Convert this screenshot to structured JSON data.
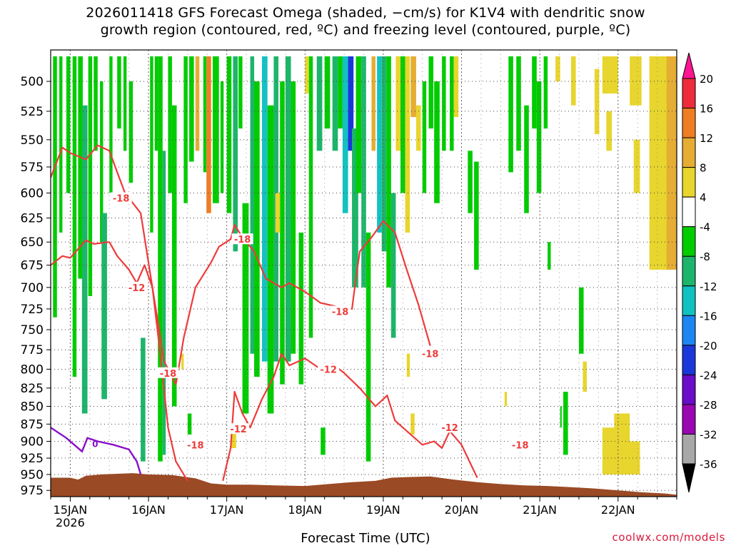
{
  "title_line1": "2026011418 GFS Forecast Omega (shaded, −cm/s) for K1V4 with dendritic snow",
  "title_line2": "growth region (contoured, red, ºC) and freezing level (contoured, purple, ºC)",
  "xlabel": "Forecast Time (UTC)",
  "credit": "coolwx.com/models",
  "chart_data": {
    "type": "heatmap",
    "title": "2026011418 GFS Forecast Omega (shaded, −cm/s) for K1V4 with dendritic snow growth region (contoured, red, ºC) and freezing level (contoured, purple, ºC)",
    "xlabel": "Forecast Time (UTC)",
    "ylabel": "",
    "x_range": [
      "2026-01-14T18Z",
      "2026-01-22T18Z"
    ],
    "x_ticks": [
      {
        "label": "15JAN",
        "sub": "2026",
        "day": 15
      },
      {
        "label": "16JAN",
        "sub": "",
        "day": 16
      },
      {
        "label": "17JAN",
        "sub": "",
        "day": 17
      },
      {
        "label": "18JAN",
        "sub": "",
        "day": 18
      },
      {
        "label": "19JAN",
        "sub": "",
        "day": 19
      },
      {
        "label": "20JAN",
        "sub": "",
        "day": 20
      },
      {
        "label": "21JAN",
        "sub": "",
        "day": 21
      },
      {
        "label": "22JAN",
        "sub": "",
        "day": 22
      }
    ],
    "y_ticks": [
      500,
      525,
      550,
      575,
      600,
      625,
      650,
      675,
      700,
      725,
      750,
      775,
      800,
      825,
      850,
      875,
      900,
      925,
      950,
      975
    ],
    "ylim": [
      475,
      985
    ],
    "y_log": true,
    "grid": true,
    "colorbar": {
      "levels": [
        20,
        16,
        12,
        8,
        4,
        -4,
        -8,
        -12,
        -16,
        -20,
        -24,
        -28,
        -32,
        -36
      ],
      "colors": [
        "#ff1493",
        "#ee2b3b",
        "#ef7e22",
        "#e5ad34",
        "#e8d52d",
        "#ffffff",
        "#00cc00",
        "#1db56b",
        "#11c2c2",
        "#1d86f2",
        "#1a38d9",
        "#6a0cc9",
        "#9a06b2",
        "#a8a8a8",
        "#000000"
      ]
    },
    "series": [
      {
        "name": "-18",
        "color": "#ee3b3b",
        "points": [
          {
            "day": 14.75,
            "p": 585
          },
          {
            "day": 14.9,
            "p": 557
          },
          {
            "day": 15.0,
            "p": 562
          },
          {
            "day": 15.2,
            "p": 568
          },
          {
            "day": 15.35,
            "p": 555
          },
          {
            "day": 15.5,
            "p": 560
          },
          {
            "day": 15.6,
            "p": 580
          },
          {
            "day": 15.7,
            "p": 600
          },
          {
            "day": 15.9,
            "p": 620
          },
          {
            "day": 16.05,
            "p": 700
          },
          {
            "day": 16.2,
            "p": 790
          },
          {
            "day": 16.35,
            "p": 820
          },
          {
            "day": 16.45,
            "p": 760
          },
          {
            "day": 16.6,
            "p": 700
          },
          {
            "day": 16.8,
            "p": 672
          },
          {
            "day": 16.9,
            "p": 655
          },
          {
            "day": 17.05,
            "p": 647
          },
          {
            "day": 17.1,
            "p": 632
          },
          {
            "day": 17.2,
            "p": 645
          },
          {
            "day": 17.35,
            "p": 660
          },
          {
            "day": 17.5,
            "p": 690
          },
          {
            "day": 17.7,
            "p": 700
          },
          {
            "day": 17.8,
            "p": 695
          },
          {
            "day": 18.0,
            "p": 705
          },
          {
            "day": 18.2,
            "p": 718
          },
          {
            "day": 18.4,
            "p": 722
          },
          {
            "day": 18.6,
            "p": 725
          },
          {
            "day": 18.65,
            "p": 690
          },
          {
            "day": 18.7,
            "p": 660
          },
          {
            "day": 18.85,
            "p": 645
          },
          {
            "day": 19.0,
            "p": 628
          },
          {
            "day": 19.15,
            "p": 640
          },
          {
            "day": 19.3,
            "p": 680
          },
          {
            "day": 19.45,
            "p": 720
          },
          {
            "day": 19.6,
            "p": 770
          }
        ]
      },
      {
        "name": "-12",
        "color": "#ee3b3b",
        "points": [
          {
            "day": 14.75,
            "p": 675
          },
          {
            "day": 14.9,
            "p": 665
          },
          {
            "day": 15.0,
            "p": 667
          },
          {
            "day": 15.2,
            "p": 648
          },
          {
            "day": 15.3,
            "p": 652
          },
          {
            "day": 15.5,
            "p": 650
          },
          {
            "day": 15.6,
            "p": 665
          },
          {
            "day": 15.75,
            "p": 680
          },
          {
            "day": 15.85,
            "p": 695
          },
          {
            "day": 15.95,
            "p": 675
          },
          {
            "day": 16.05,
            "p": 700
          },
          {
            "day": 16.15,
            "p": 780
          },
          {
            "day": 16.25,
            "p": 880
          },
          {
            "day": 16.35,
            "p": 930
          },
          {
            "day": 16.5,
            "p": 960
          }
        ]
      },
      {
        "name": "-12",
        "color": "#ee3b3b",
        "points": [
          {
            "day": 16.95,
            "p": 960
          },
          {
            "day": 17.05,
            "p": 910
          },
          {
            "day": 17.1,
            "p": 830
          },
          {
            "day": 17.2,
            "p": 860
          },
          {
            "day": 17.3,
            "p": 880
          },
          {
            "day": 17.45,
            "p": 840
          },
          {
            "day": 17.6,
            "p": 810
          },
          {
            "day": 17.7,
            "p": 780
          },
          {
            "day": 17.8,
            "p": 795
          },
          {
            "day": 18.0,
            "p": 786
          },
          {
            "day": 18.2,
            "p": 800
          },
          {
            "day": 18.35,
            "p": 793
          },
          {
            "day": 18.5,
            "p": 805
          },
          {
            "day": 18.7,
            "p": 825
          },
          {
            "day": 18.9,
            "p": 850
          },
          {
            "day": 19.05,
            "p": 835
          },
          {
            "day": 19.15,
            "p": 870
          },
          {
            "day": 19.35,
            "p": 890
          },
          {
            "day": 19.5,
            "p": 905
          },
          {
            "day": 19.65,
            "p": 900
          },
          {
            "day": 19.75,
            "p": 910
          },
          {
            "day": 19.85,
            "p": 885
          },
          {
            "day": 20.0,
            "p": 905
          },
          {
            "day": 20.2,
            "p": 955
          }
        ]
      }
    ],
    "contour_labels": [
      {
        "text": "-18",
        "day": 15.65,
        "p": 605
      },
      {
        "text": "-12",
        "day": 15.85,
        "p": 700
      },
      {
        "text": "-18",
        "day": 16.25,
        "p": 805
      },
      {
        "text": "-18",
        "day": 16.6,
        "p": 905
      },
      {
        "text": "-12",
        "day": 17.15,
        "p": 882
      },
      {
        "text": "-18",
        "day": 17.2,
        "p": 647
      },
      {
        "text": "-18",
        "day": 18.45,
        "p": 728
      },
      {
        "text": "-12",
        "day": 18.3,
        "p": 800
      },
      {
        "text": "-18",
        "day": 19.6,
        "p": 780
      },
      {
        "text": "-12",
        "day": 19.85,
        "p": 880
      },
      {
        "text": "-18",
        "day": 20.75,
        "p": 905
      }
    ],
    "freezing_level": {
      "name": "0",
      "color": "#8a10c8",
      "points": [
        {
          "day": 14.75,
          "p": 880
        },
        {
          "day": 14.95,
          "p": 895
        },
        {
          "day": 15.15,
          "p": 915
        },
        {
          "day": 15.22,
          "p": 895
        },
        {
          "day": 15.35,
          "p": 900
        },
        {
          "day": 15.55,
          "p": 905
        },
        {
          "day": 15.75,
          "p": 912
        },
        {
          "day": 15.85,
          "p": 930
        },
        {
          "day": 15.9,
          "p": 950
        }
      ]
    }
  }
}
